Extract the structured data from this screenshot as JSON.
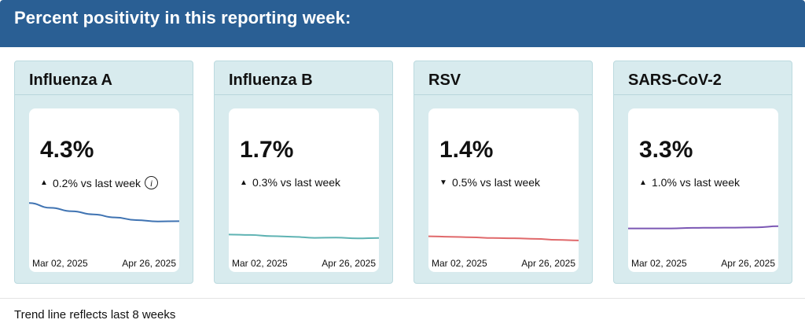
{
  "header": {
    "title": "Percent positivity in this reporting week:"
  },
  "cards": [
    {
      "title": "Influenza A",
      "value": "4.3%",
      "direction": "up",
      "change": "0.2% vs last week",
      "has_info": true,
      "date_start": "Mar 02, 2025",
      "date_end": "Apr 26, 2025",
      "color": "#3f73b2",
      "trend": [
        5.9,
        5.35,
        4.95,
        4.6,
        4.25,
        3.95,
        3.8,
        3.82
      ]
    },
    {
      "title": "Influenza B",
      "value": "1.7%",
      "direction": "up",
      "change": "0.3% vs last week",
      "has_info": false,
      "date_start": "Mar 02, 2025",
      "date_end": "Apr 26, 2025",
      "color": "#5fb3b3",
      "trend": [
        2.3,
        2.25,
        2.12,
        2.05,
        1.92,
        1.96,
        1.86,
        1.9
      ]
    },
    {
      "title": "RSV",
      "value": "1.4%",
      "direction": "down",
      "change": "0.5% vs last week",
      "has_info": false,
      "date_start": "Mar 02, 2025",
      "date_end": "Apr 26, 2025",
      "color": "#e0696b",
      "trend": [
        2.1,
        2.05,
        1.98,
        1.9,
        1.88,
        1.8,
        1.7,
        1.62
      ]
    },
    {
      "title": "SARS-CoV-2",
      "value": "3.3%",
      "direction": "up",
      "change": "1.0% vs last week",
      "has_info": false,
      "date_start": "Mar 02, 2025",
      "date_end": "Apr 26, 2025",
      "color": "#7b57b4",
      "trend": [
        3.0,
        3.0,
        3.0,
        3.06,
        3.08,
        3.09,
        3.12,
        3.25
      ]
    }
  ],
  "footer": {
    "note": "Trend line reflects last 8 weeks"
  }
}
